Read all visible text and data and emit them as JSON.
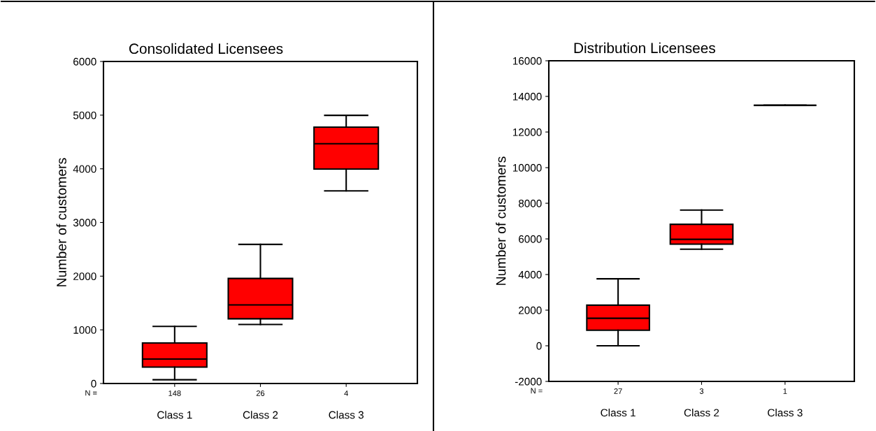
{
  "chart_data": [
    {
      "type": "box",
      "title": "Consolidated Licensees",
      "ylabel": "Number of customers",
      "categories": [
        "Class 1",
        "Class 2",
        "Class 3"
      ],
      "series": [
        {
          "color": "#ff0000",
          "boxes": [
            {
              "low": 70,
              "q1": 305,
              "median": 455,
              "q3": 755,
              "high": 1065
            },
            {
              "low": 1100,
              "q1": 1205,
              "median": 1465,
              "q3": 1957,
              "high": 2592
            },
            {
              "low": 3590,
              "q1": 3996,
              "median": 4468,
              "q3": 4777,
              "high": 4996
            }
          ]
        }
      ],
      "ylim": [
        0,
        6000
      ],
      "yticks": [
        0,
        1000,
        2000,
        3000,
        4000,
        5000,
        6000
      ],
      "grid": false,
      "legend": false,
      "annotations": [
        "N =",
        "148",
        "26",
        "4"
      ]
    },
    {
      "type": "box",
      "title": "Distribution Licensees",
      "ylabel": "Number of customers",
      "categories": [
        "Class 1",
        "Class 2",
        "Class 3"
      ],
      "series": [
        {
          "colors": [
            "#ff0000",
            "#ff0000",
            "#000000"
          ],
          "boxes": [
            {
              "low": 0,
              "q1": 870,
              "median": 1545,
              "q3": 2280,
              "high": 3760
            },
            {
              "low": 5420,
              "q1": 5705,
              "median": 5975,
              "q3": 6820,
              "high": 7620
            },
            {
              "low": 13500,
              "q1": 13500,
              "median": 13500,
              "q3": 13500,
              "high": 13500
            }
          ]
        }
      ],
      "ylim": [
        -2000,
        16000
      ],
      "yticks": [
        -2000,
        0,
        2000,
        4000,
        6000,
        8000,
        10000,
        12000,
        14000,
        16000
      ],
      "grid": false,
      "legend": false,
      "annotations": [
        "N =",
        "27",
        "3",
        "1"
      ]
    }
  ]
}
